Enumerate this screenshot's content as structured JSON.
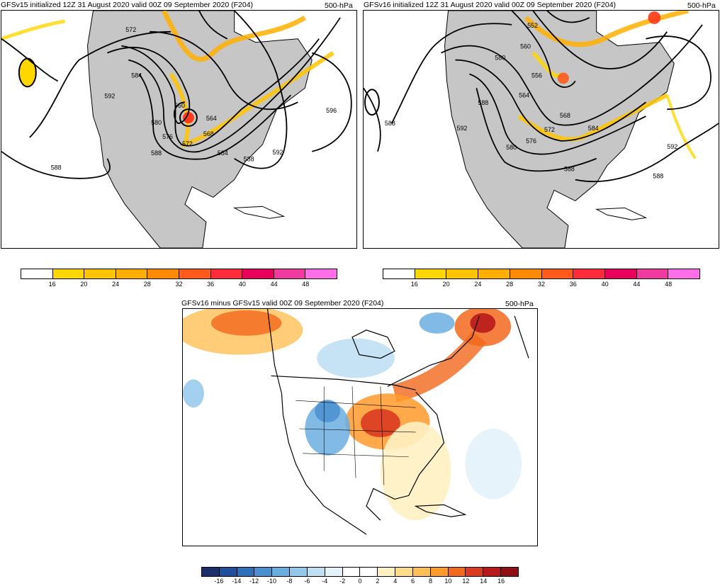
{
  "panels": [
    {
      "title": "GFSv15 initialized 12Z 31 August 2020 valid 00Z 09 September 2020 (F204)",
      "level": "500-hPa",
      "contour_labels": [
        "572",
        "584",
        "592",
        "560",
        "580",
        "576",
        "588",
        "588",
        "564",
        "568",
        "572",
        "584",
        "588",
        "592",
        "596"
      ]
    },
    {
      "title": "GFSv16 initialized 12Z 31 August 2020 valid 00Z 09 September 2020 (F204)",
      "level": "500-hPa",
      "contour_labels": [
        "552",
        "560",
        "580",
        "556",
        "564",
        "588",
        "592",
        "588",
        "568",
        "572",
        "576",
        "580",
        "584",
        "588",
        "592",
        "588"
      ]
    },
    {
      "title": "GFSv16 minus GFSv15 valid 00Z 09 September 2020 (F204)",
      "level": "500-hPa"
    }
  ],
  "colorbar_wind": {
    "ticks": [
      "16",
      "20",
      "24",
      "28",
      "32",
      "36",
      "40",
      "44",
      "48"
    ],
    "colors": [
      "#ffffff",
      "#ffd700",
      "#ffc400",
      "#ffae00",
      "#ff8a00",
      "#ff5a1a",
      "#ff2a3a",
      "#e8005a",
      "#f03aa0",
      "#ff6ee8"
    ]
  },
  "colorbar_diff": {
    "ticks": [
      "-16",
      "-14",
      "-12",
      "-10",
      "-8",
      "-6",
      "-4",
      "-2",
      "0",
      "2",
      "4",
      "6",
      "8",
      "10",
      "12",
      "14",
      "16"
    ],
    "colors": [
      "#1c2f6b",
      "#214f9a",
      "#2f6fb8",
      "#4a8fd0",
      "#6aaee0",
      "#93c8ec",
      "#bfe0f3",
      "#e4f2fa",
      "#ffffff",
      "#ffffff",
      "#fff0c2",
      "#ffdc8a",
      "#ffbf55",
      "#ff9a2c",
      "#f2681c",
      "#d93a20",
      "#b81a1a",
      "#8f0f14"
    ]
  }
}
